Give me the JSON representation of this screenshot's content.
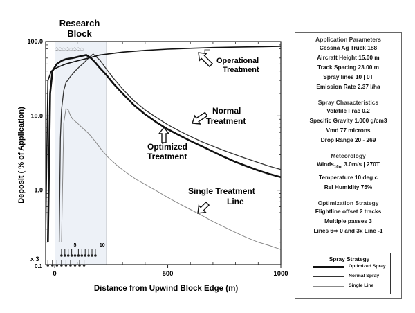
{
  "chart_data": {
    "type": "line",
    "title": "Research Block",
    "xlabel": "Distance from Upwind Block Edge (m)",
    "ylabel": "Deposit ( % of Application)",
    "x_ticks": [
      "0",
      "500",
      "1000"
    ],
    "y_ticks": [
      "0.1",
      "1.0",
      "10.0",
      "100.0"
    ],
    "xlim": [
      -40,
      1000
    ],
    "ylim": [
      0.1,
      100
    ],
    "y_scale": "log",
    "block_edge_x": 230,
    "colors": {
      "optimized": "#111111",
      "normal": "#333333",
      "single": "#888888",
      "operational": "#111111",
      "block_fill": "#edf1f7"
    },
    "series": [
      {
        "name": "Optimized Spray",
        "x": [
          -30,
          -20,
          -10,
          0,
          10,
          30,
          50,
          80,
          110,
          140,
          160,
          180,
          200,
          230,
          260,
          300,
          350,
          400,
          450,
          500,
          550,
          600,
          650,
          700,
          750,
          800,
          850,
          900,
          950,
          1000
        ],
        "y": [
          0.2,
          20,
          40,
          45,
          50,
          55,
          58,
          60,
          63,
          66,
          60,
          52,
          44,
          35,
          27,
          20,
          14,
          10.5,
          8.2,
          6.6,
          5.5,
          4.6,
          3.9,
          3.3,
          2.8,
          2.4,
          2.1,
          1.85,
          1.65,
          1.5
        ]
      },
      {
        "name": "Normal Spray",
        "x": [
          20,
          25,
          30,
          40,
          50,
          70,
          90,
          110,
          130,
          150,
          170,
          200,
          230,
          260,
          300,
          350,
          400,
          450,
          500,
          550,
          600,
          650,
          700,
          750,
          800,
          850,
          900,
          950,
          1000
        ],
        "y": [
          0.2,
          5,
          12,
          22,
          28,
          34,
          40,
          46,
          52,
          60,
          68,
          56,
          42,
          32,
          23,
          16,
          12,
          9.5,
          7.6,
          6.3,
          5.3,
          4.5,
          3.9,
          3.4,
          3,
          2.65,
          2.35,
          2.1,
          1.9
        ]
      },
      {
        "name": "Single Line",
        "x": [
          30,
          40,
          50,
          60,
          70,
          80,
          100,
          120,
          150,
          180,
          210,
          240,
          280,
          320,
          360,
          400,
          450,
          500,
          550,
          600,
          650,
          700,
          750,
          800,
          850,
          900,
          950,
          1000
        ],
        "y": [
          0.2,
          8,
          12.5,
          12,
          10,
          9,
          8,
          7,
          5.8,
          4.5,
          3.4,
          2.7,
          2.1,
          1.7,
          1.4,
          1.2,
          0.98,
          0.8,
          0.66,
          0.55,
          0.46,
          0.38,
          0.32,
          0.27,
          0.23,
          0.2,
          0.18,
          0.16
        ]
      },
      {
        "name": "Operational Treatment",
        "x": [
          -40,
          -30,
          -15,
          0,
          20,
          50,
          100,
          150,
          200,
          300,
          400,
          500,
          600,
          700,
          800,
          900,
          1000
        ],
        "y": [
          0.25,
          30,
          40,
          43,
          46,
          50,
          55,
          60,
          66,
          72,
          76,
          79,
          81,
          83,
          84,
          85,
          86
        ]
      }
    ],
    "annotations": {
      "operational": "Operational Treatment",
      "normal": "Normal Treatment",
      "optimized": "Optimized Treatment",
      "single": "Single Treatment Line"
    },
    "markers": {
      "bottom_labels": [
        "x 3",
        "0.1",
        "5",
        "10"
      ],
      "top_symbol": "♤",
      "top_count": 8,
      "lower_pin_x": [
        30,
        45,
        60,
        75,
        90,
        105,
        120,
        135,
        150,
        165,
        180
      ],
      "bottom_pin_x": [
        -30,
        -10,
        10,
        30,
        50,
        70,
        90,
        110,
        130
      ]
    }
  },
  "panel": {
    "app_title": "Application Parameters",
    "app_rows": [
      "Cessna Ag Truck 188",
      "Aircraft Height 15.00 m",
      "Track Spacing 23.00 m",
      "Spray lines   10 | 0T",
      "Emission Rate 2.37 l/ha"
    ],
    "spray_title": "Spray Characteristics",
    "spray_rows": [
      "Volatile Frac 0.2",
      "Specific Gravity 1.000 g/cm3",
      "Vmd  77 microns",
      "Drop Range  20 -  269"
    ],
    "met_title": "Meteorology",
    "winds_label": "Winds",
    "winds_sub": "16m",
    "winds_value": " 3.0m/s | 270T",
    "met_rows": [
      "Temperature  10 deg c",
      "Rel Humidity  75%"
    ],
    "opt_title": "Optimization Strategy",
    "opt_rows": [
      "Flightline offset 2 tracks",
      "Multiple passes  3"
    ],
    "lines_pre": "Lines  6",
    "lines_arrow": "⇨",
    "lines_post": " 0 and  3x Line -1",
    "legend_title": "Spray Strategy",
    "legend": [
      "Optimized Spray",
      "Normal Spray",
      "Single Line"
    ]
  }
}
